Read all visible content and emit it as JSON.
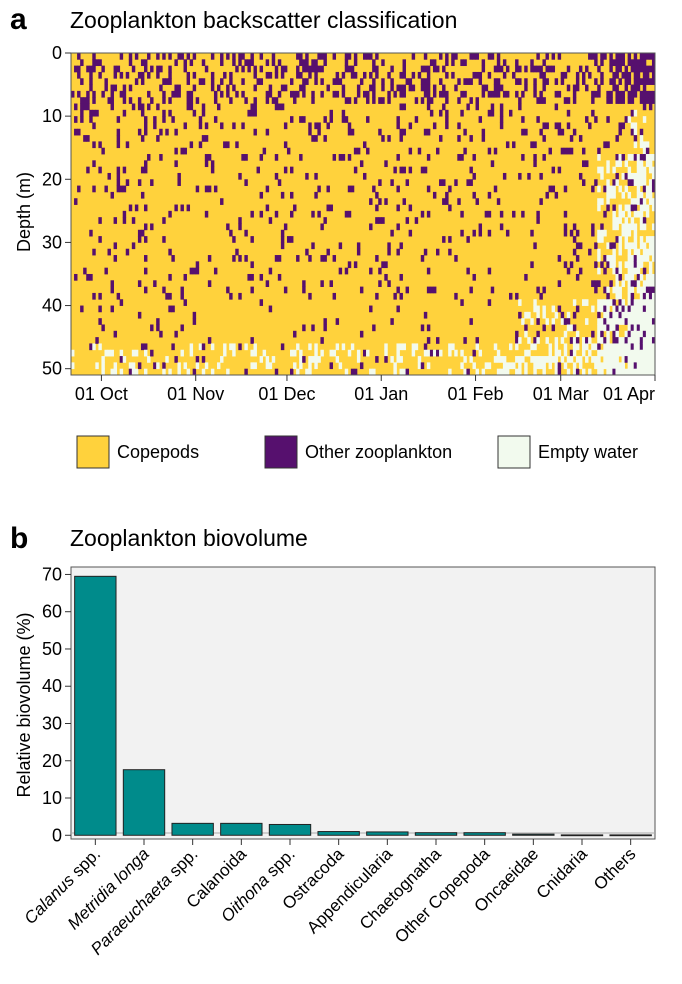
{
  "panel_a": {
    "letter": "a",
    "title": "Zooplankton backscatter classification",
    "ylabel": "Depth (m)",
    "yticks": [
      "0",
      "10",
      "20",
      "30",
      "40",
      "50"
    ],
    "xticks": [
      "01 Oct",
      "01 Nov",
      "01 Dec",
      "01 Jan",
      "01 Feb",
      "01 Mar",
      "01 Apr"
    ],
    "legend": [
      {
        "label": "Copepods",
        "color": "#FFD23C"
      },
      {
        "label": "Other zooplankton",
        "color": "#56106E"
      },
      {
        "label": "Empty water",
        "color": "#F2FAEE"
      }
    ]
  },
  "panel_b": {
    "letter": "b",
    "title": "Zooplankton biovolume",
    "ylabel": "Relative biovolume (%)",
    "yticks": [
      "0",
      "10",
      "20",
      "30",
      "40",
      "50",
      "60",
      "70"
    ]
  },
  "chart_data": [
    {
      "type": "heatmap",
      "title": "Zooplankton backscatter classification",
      "ylabel": "Depth (m)",
      "ylim": [
        51,
        0
      ],
      "x_range": [
        "2022-09-21",
        "2023-04-01"
      ],
      "x_ticks": [
        "01 Oct",
        "01 Nov",
        "01 Dec",
        "01 Jan",
        "01 Feb",
        "01 Mar",
        "01 Apr"
      ],
      "y_ticks": [
        0,
        10,
        20,
        30,
        40,
        50
      ],
      "classes": [
        "Copepods",
        "Other zooplankton",
        "Empty water"
      ],
      "colors": {
        "Copepods": "#FFD23C",
        "Other zooplankton": "#56106E",
        "Empty water": "#F2FAEE"
      },
      "legend_position": "bottom"
    },
    {
      "type": "bar",
      "title": "Zooplankton biovolume",
      "xlabel": "",
      "ylabel": "Relative biovolume (%)",
      "ylim": [
        -1,
        72
      ],
      "categories": [
        "Calanus spp.",
        "Metridia longa",
        "Paraeuchaeta spp.",
        "Calanoida",
        "Oithona spp.",
        "Ostracoda",
        "Appendicularia",
        "Chaetognatha",
        "Other Copepoda",
        "Oncaeidae",
        "Cnidaria",
        "Others"
      ],
      "category_parts": [
        [
          {
            "t": "Calanus",
            "i": true
          },
          {
            "t": " spp.",
            "i": false
          }
        ],
        [
          {
            "t": "Metridia longa",
            "i": true
          }
        ],
        [
          {
            "t": "Paraeuchaeta",
            "i": true
          },
          {
            "t": " spp.",
            "i": false
          }
        ],
        [
          {
            "t": "Calanoida",
            "i": false
          }
        ],
        [
          {
            "t": "Oithona",
            "i": true
          },
          {
            "t": " spp.",
            "i": false
          }
        ],
        [
          {
            "t": "Ostracoda",
            "i": false
          }
        ],
        [
          {
            "t": "Appendicularia",
            "i": false
          }
        ],
        [
          {
            "t": "Chaetognatha",
            "i": false
          }
        ],
        [
          {
            "t": "Other Copepoda",
            "i": false
          }
        ],
        [
          {
            "t": "Oncaeidae",
            "i": false
          }
        ],
        [
          {
            "t": "Cnidaria",
            "i": false
          }
        ],
        [
          {
            "t": "Others",
            "i": false
          }
        ]
      ],
      "values": [
        69.5,
        17.6,
        3.2,
        3.2,
        2.9,
        1.0,
        0.9,
        0.7,
        0.7,
        0.3,
        0.1,
        0.1
      ],
      "bar_color": "#008B8B",
      "grid": false
    }
  ]
}
